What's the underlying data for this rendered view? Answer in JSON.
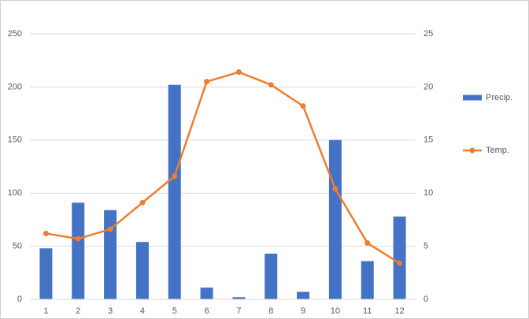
{
  "chart_data": {
    "type": "bar-line",
    "categories": [
      "1",
      "2",
      "3",
      "4",
      "5",
      "6",
      "7",
      "8",
      "9",
      "10",
      "11",
      "12"
    ],
    "series": [
      {
        "name": "Precip.",
        "type": "bar",
        "color": "#4472c4",
        "axis": "y",
        "values": [
          48,
          91,
          84,
          54,
          202,
          11,
          2,
          43,
          7,
          150,
          36,
          78
        ]
      },
      {
        "name": "Temp.",
        "type": "line",
        "color": "#ed7d31",
        "axis": "y2",
        "values": [
          6.2,
          5.7,
          6.6,
          9.1,
          11.6,
          20.5,
          21.4,
          20.2,
          18.2,
          10.4,
          5.3,
          3.4
        ]
      }
    ],
    "ylim": [
      0,
      250
    ],
    "yticks": [
      0,
      50,
      100,
      150,
      200,
      250
    ],
    "y2lim": [
      0,
      25
    ],
    "y2ticks": [
      0,
      5,
      10,
      15,
      20,
      25
    ],
    "grid": true,
    "legend": "right"
  }
}
